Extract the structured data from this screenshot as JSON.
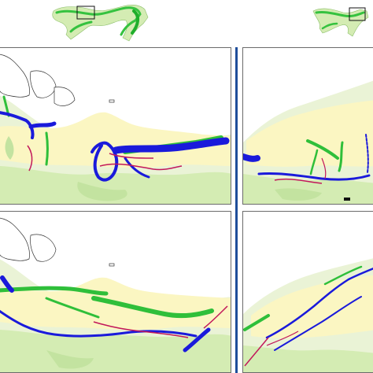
{
  "figure": {
    "columns": 2,
    "rows": 2,
    "colors": {
      "background": "#ffffff",
      "panel_border": "#6b6b6b",
      "divider": "#1f4e9a",
      "land_base": "#eaf3d6",
      "land_light_green": "#d4ecb3",
      "lowland_yellow": "#fbf6c2",
      "route_green": "#2fbf3a",
      "route_blue": "#1a1adb",
      "route_red": "#c2185b",
      "coast_line": "#333333"
    },
    "legend_present": false,
    "inset_maps": [
      {
        "name": "left-inset",
        "shows_extent_box": true
      },
      {
        "name": "right-inset",
        "shows_extent_box": true
      }
    ],
    "panels": [
      {
        "name": "panel-top-left",
        "row": 1,
        "column": 1,
        "route_colors": [
          "green",
          "blue",
          "red"
        ]
      },
      {
        "name": "panel-top-right",
        "row": 1,
        "column": 2,
        "route_colors": [
          "green",
          "blue",
          "red"
        ]
      },
      {
        "name": "panel-bottom-left",
        "row": 2,
        "column": 1,
        "route_colors": [
          "green",
          "blue",
          "red"
        ]
      },
      {
        "name": "panel-bottom-right",
        "row": 2,
        "column": 2,
        "route_colors": [
          "green",
          "blue",
          "red"
        ]
      }
    ]
  }
}
